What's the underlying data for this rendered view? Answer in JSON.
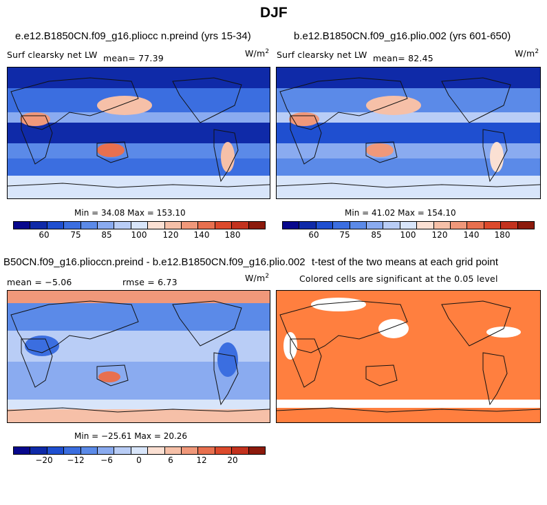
{
  "figure_title": "DJF",
  "colors": {
    "scale": [
      "#08088c",
      "#0f2aa8",
      "#1f4fd0",
      "#3b6ee0",
      "#5b8ae8",
      "#8aabf0",
      "#b9cdf6",
      "#d8e5fa",
      "#fbe0d3",
      "#f6c0a8",
      "#f0987a",
      "#e8704f",
      "#dc4a2c",
      "#c3321e",
      "#8c1a0c"
    ],
    "land_outline": "#111111",
    "significant": "#ff7f3f",
    "not_significant": "#ffffff"
  },
  "chart_data": [
    {
      "type": "heatmap",
      "panel": "top-left",
      "title": "e.e12.B1850CN.f09_g16.pliocc n.preind (yrs 15-34)",
      "variable": "Surf clearsky net LW",
      "mean_label": "mean=  77.39",
      "units": "W/m",
      "units_sup": "2",
      "stats": "Min =  34.08 Max = 153.10",
      "colorbar_ticks": [
        "60",
        "75",
        "85",
        "100",
        "120",
        "140",
        "180"
      ],
      "min": 34.08,
      "max": 153.1,
      "mean": 77.39
    },
    {
      "type": "heatmap",
      "panel": "top-right",
      "title": "b.e12.B1850CN.f09_g16.plio.002 (yrs 601-650)",
      "variable": "Surf clearsky net LW",
      "mean_label": "mean=  82.45",
      "units": "W/m",
      "units_sup": "2",
      "stats": "Min =  41.02 Max = 154.10",
      "colorbar_ticks": [
        "60",
        "75",
        "85",
        "100",
        "120",
        "140",
        "180"
      ],
      "min": 41.02,
      "max": 154.1,
      "mean": 82.45
    },
    {
      "type": "heatmap",
      "panel": "bottom-left",
      "title": "B50CN.f09_g16.plioccn.preind - b.e12.B1850CN.f09_g16.plio.002",
      "mean_label": "mean =  −5.06",
      "rmse_label": "rmse =    6.73",
      "units": "W/m",
      "units_sup": "2",
      "stats": "Min = −25.61 Max =  20.26",
      "colorbar_ticks": [
        "−20",
        "−12",
        "−6",
        "0",
        "6",
        "12",
        "20"
      ],
      "min": -25.61,
      "max": 20.26,
      "mean": -5.06,
      "rmse": 6.73
    },
    {
      "type": "heatmap",
      "panel": "bottom-right",
      "title": "t-test of the two means at each grid point",
      "subtitle": "Colored cells are significant at the 0.05 level"
    }
  ]
}
